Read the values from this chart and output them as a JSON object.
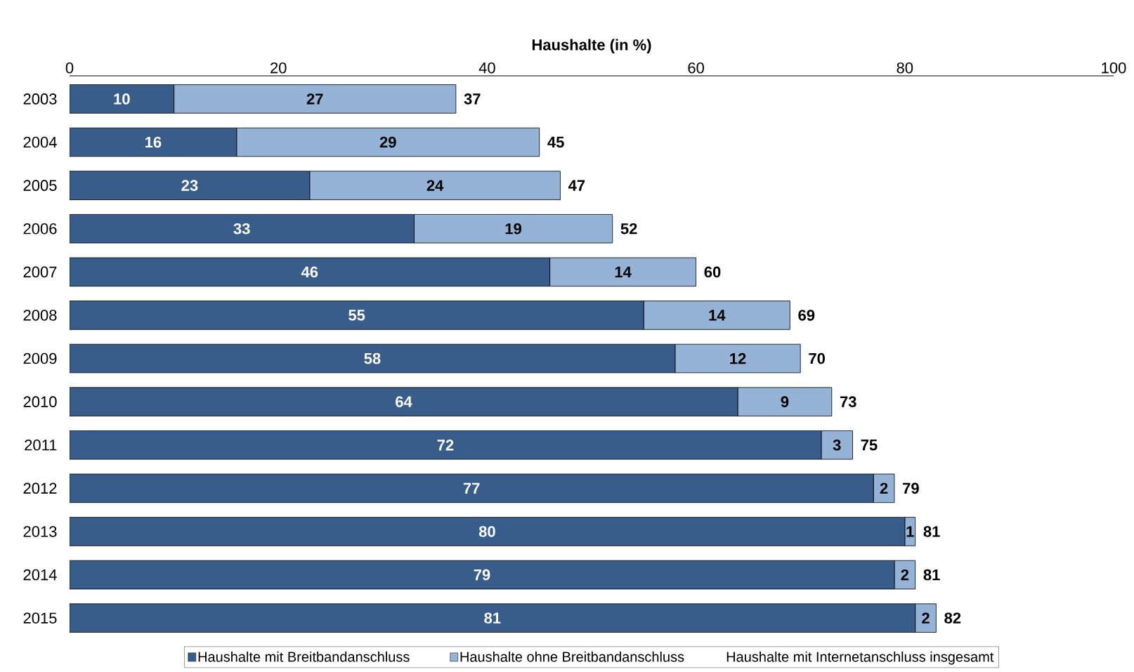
{
  "chart_data": {
    "type": "bar",
    "orientation": "horizontal",
    "stacked": true,
    "xlabel": "Haushalte (in %)",
    "categories": [
      "2003",
      "2004",
      "2005",
      "2006",
      "2007",
      "2008",
      "2009",
      "2010",
      "2011",
      "2012",
      "2013",
      "2014",
      "2015"
    ],
    "series": [
      {
        "name": "Haushalte mit Breitbandanschluss",
        "color": "#385d8a",
        "values": [
          10,
          16,
          23,
          33,
          46,
          55,
          58,
          64,
          72,
          77,
          80,
          79,
          81
        ]
      },
      {
        "name": "Haushalte ohne Breitbandanschluss",
        "color": "#95b3d7",
        "values": [
          27,
          29,
          24,
          19,
          14,
          14,
          12,
          9,
          3,
          2,
          1,
          2,
          2
        ]
      }
    ],
    "totals": [
      "37",
      "45",
      "47",
      "52",
      "60",
      "69",
      "70",
      "73",
      "75",
      "79",
      "81",
      "81",
      "82"
    ],
    "annotations": [
      "Haushalte mit Internetanschluss insgesamt"
    ],
    "data_labels": true,
    "xlim": [
      0,
      100
    ],
    "xticks": [
      0,
      20,
      40,
      60,
      80,
      100
    ],
    "legend": "bottom",
    "grid": false
  }
}
